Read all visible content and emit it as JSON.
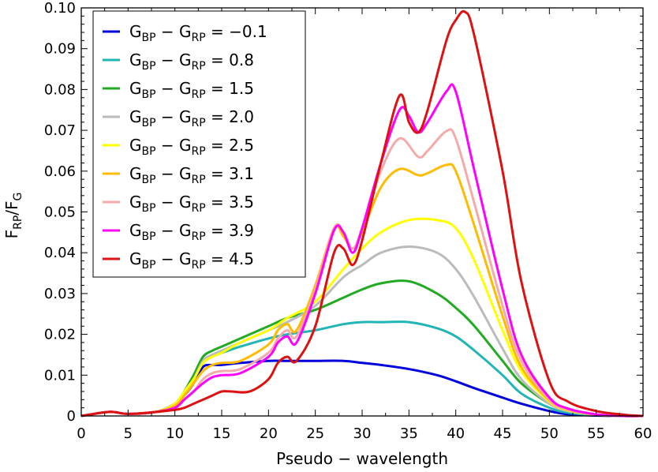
{
  "chart_data": {
    "type": "line",
    "xlabel": "Pseudo − wavelength",
    "ylabel": {
      "main": "F",
      "sub1": "RP",
      "sep": "/F",
      "sub2": "G"
    },
    "xlim": [
      0,
      60
    ],
    "ylim": [
      0,
      0.1
    ],
    "x_ticks": [
      0,
      5,
      10,
      15,
      20,
      25,
      30,
      35,
      40,
      45,
      50,
      55,
      60
    ],
    "y_ticks": [
      0,
      0.01,
      0.02,
      0.03,
      0.04,
      0.05,
      0.06,
      0.07,
      0.08,
      0.09,
      0.1
    ],
    "y_tick_labels": [
      "0",
      "0.01",
      "0.02",
      "0.03",
      "0.04",
      "0.05",
      "0.06",
      "0.07",
      "0.08",
      "0.09",
      "0.10"
    ],
    "grid": false,
    "legend_position": "top-left",
    "legend_label_parts": {
      "a": "G",
      "a_sub": "BP",
      "minus": " − ",
      "b": "G",
      "b_sub": "RP",
      "eq": " = "
    },
    "series": [
      {
        "name": "−0.1",
        "color": "#0000dd",
        "x": [
          0,
          3,
          5,
          8,
          10,
          11,
          12,
          13,
          14,
          15,
          17,
          20,
          22,
          25,
          28,
          30,
          32,
          35,
          38,
          40,
          42,
          45,
          47,
          50,
          52,
          55,
          58,
          60
        ],
        "y": [
          0,
          0.001,
          0.0005,
          0.001,
          0.003,
          0.005,
          0.008,
          0.012,
          0.0125,
          0.0125,
          0.013,
          0.0135,
          0.0135,
          0.0135,
          0.0135,
          0.013,
          0.0125,
          0.0115,
          0.01,
          0.0085,
          0.0068,
          0.0045,
          0.003,
          0.0012,
          0.0004,
          0.0001,
          0,
          0
        ]
      },
      {
        "name": "0.8",
        "color": "#22b5b5",
        "x": [
          0,
          3,
          5,
          8,
          10,
          11,
          12,
          13,
          14,
          15,
          17,
          20,
          22,
          25,
          28,
          30,
          32,
          35,
          38,
          40,
          42,
          45,
          47,
          50,
          52,
          55,
          58,
          60
        ],
        "y": [
          0,
          0.001,
          0.0005,
          0.001,
          0.003,
          0.006,
          0.009,
          0.013,
          0.015,
          0.0155,
          0.017,
          0.019,
          0.02,
          0.021,
          0.0225,
          0.023,
          0.023,
          0.023,
          0.0215,
          0.0195,
          0.016,
          0.01,
          0.0055,
          0.002,
          0.0008,
          0.0002,
          0,
          0
        ]
      },
      {
        "name": "1.5",
        "color": "#22aa22",
        "x": [
          0,
          3,
          5,
          8,
          10,
          11,
          12,
          13,
          14,
          15,
          17,
          20,
          22,
          25,
          28,
          30,
          32,
          35,
          38,
          40,
          42,
          45,
          47,
          50,
          52,
          55,
          58,
          60
        ],
        "y": [
          0,
          0.001,
          0.0005,
          0.001,
          0.003,
          0.006,
          0.01,
          0.0145,
          0.016,
          0.017,
          0.019,
          0.022,
          0.024,
          0.026,
          0.029,
          0.031,
          0.0325,
          0.033,
          0.03,
          0.0265,
          0.022,
          0.0135,
          0.008,
          0.003,
          0.0012,
          0.0003,
          0,
          0
        ]
      },
      {
        "name": "2.0",
        "color": "#bbbbbb",
        "x": [
          0,
          3,
          5,
          8,
          10,
          11,
          12,
          13,
          14,
          15,
          17,
          20,
          22,
          25,
          28,
          30,
          32,
          35,
          38,
          40,
          42,
          45,
          47,
          50,
          52,
          55,
          58,
          60
        ],
        "y": [
          0,
          0.001,
          0.0005,
          0.001,
          0.003,
          0.006,
          0.009,
          0.0135,
          0.015,
          0.016,
          0.018,
          0.021,
          0.023,
          0.027,
          0.034,
          0.037,
          0.04,
          0.0415,
          0.04,
          0.036,
          0.029,
          0.0165,
          0.009,
          0.003,
          0.0012,
          0.0003,
          0,
          0
        ]
      },
      {
        "name": "2.5",
        "color": "#ffff00",
        "x": [
          0,
          3,
          5,
          8,
          10,
          11,
          12,
          13,
          14,
          15,
          17,
          20,
          22,
          25,
          28,
          30,
          32,
          35,
          38,
          40,
          42,
          45,
          47,
          50,
          52,
          55,
          58,
          60
        ],
        "y": [
          0,
          0.001,
          0.0005,
          0.001,
          0.003,
          0.006,
          0.009,
          0.013,
          0.0145,
          0.0155,
          0.018,
          0.021,
          0.024,
          0.028,
          0.036,
          0.041,
          0.045,
          0.048,
          0.048,
          0.046,
          0.038,
          0.021,
          0.011,
          0.0035,
          0.0014,
          0.0003,
          0,
          0
        ]
      },
      {
        "name": "3.1",
        "color": "#ffbb00",
        "x": [
          0,
          3,
          5,
          8,
          10,
          11,
          12,
          13,
          14,
          15,
          17,
          20,
          21,
          22,
          23,
          25,
          27,
          28,
          29,
          30,
          32,
          34,
          36,
          37,
          39,
          40,
          42,
          45,
          47,
          50,
          52,
          55,
          58,
          60
        ],
        "y": [
          0,
          0.001,
          0.0005,
          0.001,
          0.0025,
          0.005,
          0.008,
          0.011,
          0.0125,
          0.013,
          0.0135,
          0.0175,
          0.021,
          0.0225,
          0.021,
          0.032,
          0.046,
          0.044,
          0.041,
          0.045,
          0.056,
          0.0605,
          0.059,
          0.0595,
          0.0615,
          0.06,
          0.0465,
          0.0245,
          0.012,
          0.0038,
          0.0015,
          0.0003,
          0,
          0
        ]
      },
      {
        "name": "3.5",
        "color": "#f5aaaa",
        "x": [
          0,
          3,
          5,
          8,
          10,
          11,
          12,
          13,
          14,
          15,
          17,
          20,
          21,
          22,
          23,
          25,
          27,
          28,
          29,
          30,
          32,
          34,
          36,
          37,
          39,
          40,
          42,
          45,
          47,
          50,
          52,
          55,
          58,
          60
        ],
        "y": [
          0,
          0.001,
          0.0005,
          0.001,
          0.002,
          0.004,
          0.006,
          0.009,
          0.0105,
          0.011,
          0.0115,
          0.0155,
          0.019,
          0.021,
          0.0195,
          0.031,
          0.046,
          0.045,
          0.041,
          0.046,
          0.06,
          0.068,
          0.0635,
          0.065,
          0.0698,
          0.068,
          0.052,
          0.027,
          0.0135,
          0.004,
          0.0016,
          0.0003,
          0,
          0
        ]
      },
      {
        "name": "3.9",
        "color": "#ff00ff",
        "x": [
          0,
          3,
          5,
          8,
          10,
          11,
          12,
          13,
          14,
          15,
          17,
          20,
          21,
          22,
          23,
          25,
          27,
          28,
          29,
          30,
          32,
          34,
          35,
          36,
          37,
          39,
          40,
          42,
          45,
          47,
          50,
          52,
          55,
          58,
          60
        ],
        "y": [
          0,
          0.001,
          0.0005,
          0.001,
          0.002,
          0.004,
          0.006,
          0.008,
          0.0095,
          0.01,
          0.0105,
          0.0145,
          0.018,
          0.0195,
          0.018,
          0.03,
          0.0455,
          0.045,
          0.04,
          0.046,
          0.062,
          0.075,
          0.0735,
          0.0695,
          0.072,
          0.0795,
          0.0795,
          0.06,
          0.031,
          0.015,
          0.0045,
          0.0018,
          0.0004,
          0,
          0
        ]
      },
      {
        "name": "4.5",
        "color": "#dd1111",
        "x": [
          0,
          3,
          5,
          8,
          10,
          11,
          12,
          13,
          14,
          15,
          16,
          18,
          20,
          21,
          22,
          23,
          25,
          27,
          28,
          29,
          30,
          32,
          34,
          35,
          36,
          37,
          39,
          40,
          41,
          42,
          45,
          47,
          50,
          52,
          55,
          58,
          60
        ],
        "y": [
          0,
          0.001,
          0.0005,
          0.001,
          0.0015,
          0.002,
          0.003,
          0.004,
          0.005,
          0.006,
          0.006,
          0.006,
          0.009,
          0.013,
          0.0145,
          0.0135,
          0.022,
          0.04,
          0.041,
          0.037,
          0.043,
          0.062,
          0.0785,
          0.072,
          0.0695,
          0.075,
          0.092,
          0.097,
          0.099,
          0.093,
          0.06,
          0.033,
          0.0085,
          0.0035,
          0.0012,
          0.0003,
          0
        ]
      }
    ]
  }
}
